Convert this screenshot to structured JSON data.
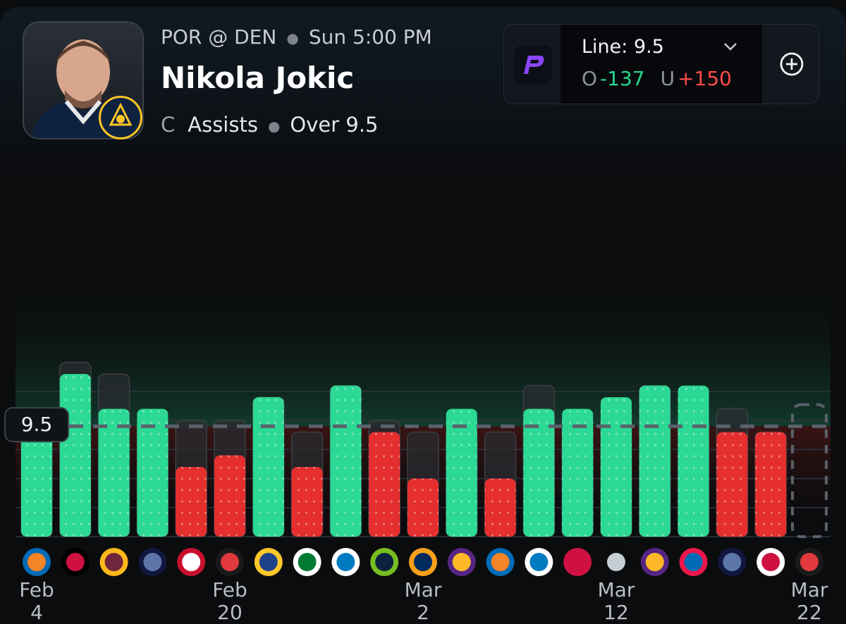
{
  "header": {
    "matchup": "POR @ DEN",
    "game_time": "Sun 5:00 PM",
    "player_name": "Nikola Jokic",
    "position": "C",
    "stat": "Assists",
    "pick": "Over 9.5"
  },
  "line_selector": {
    "book_icon": "prizepicks-logo-icon",
    "line_label": "Line: 9.5",
    "over_label": "O",
    "over_odds": "-137",
    "under_label": "U",
    "under_odds": "+150",
    "dropdown_icon": "chevron-down-icon",
    "add_icon": "plus-circle-icon"
  },
  "colors": {
    "over_bar": "#2bd994",
    "under_bar": "#e52e2e",
    "ghost_bar": "#2a2c30",
    "accent_green": "#27d68c",
    "accent_red": "#ff4a4a"
  },
  "chart_data": {
    "type": "bar",
    "ylabel": "Assists",
    "ylim": [
      0,
      16
    ],
    "line": 9.5,
    "line_label": "9.5",
    "grid": true,
    "categories": [
      "NYK",
      "CHI",
      "CLE",
      "MEM",
      "LAC",
      "POR",
      "GSW",
      "BOS",
      "OKC",
      "MIN",
      "UTA",
      "LAL",
      "NYK",
      "OKC",
      "HOU",
      "SAS",
      "LAL",
      "PHI",
      "MEM",
      "TOR",
      "POR"
    ],
    "values": [
      10,
      14,
      11,
      11,
      6,
      7,
      12,
      6,
      13,
      9,
      5,
      11,
      5,
      11,
      11,
      12,
      13,
      13,
      9,
      9,
      null
    ],
    "secondary_values": [
      11,
      15,
      14,
      10,
      10,
      10,
      12,
      9,
      13,
      10,
      9,
      9,
      9,
      13,
      10,
      11,
      13,
      10,
      11,
      9,
      null
    ],
    "upcoming_index": 20,
    "date_ticks": [
      {
        "index": 0,
        "month": "Feb",
        "day": "4"
      },
      {
        "index": 5,
        "month": "Feb",
        "day": "20"
      },
      {
        "index": 10,
        "month": "Mar",
        "day": "2"
      },
      {
        "index": 15,
        "month": "Mar",
        "day": "12"
      },
      {
        "index": 20,
        "month": "Mar",
        "day": "22"
      }
    ],
    "opponent_logos": [
      "knicks-logo-icon",
      "bulls-logo-icon",
      "cavaliers-logo-icon",
      "grizzlies-logo-icon",
      "clippers-logo-icon",
      "trail-blazers-logo-icon",
      "warriors-logo-icon",
      "celtics-logo-icon",
      "thunder-logo-icon",
      "timberwolves-logo-icon",
      "jazz-logo-icon",
      "lakers-logo-icon",
      "knicks-logo-icon",
      "thunder-logo-icon",
      "rockets-logo-icon",
      "spurs-logo-icon",
      "lakers-logo-icon",
      "76ers-logo-icon",
      "grizzlies-logo-icon",
      "raptors-logo-icon",
      "trail-blazers-logo-icon"
    ]
  }
}
